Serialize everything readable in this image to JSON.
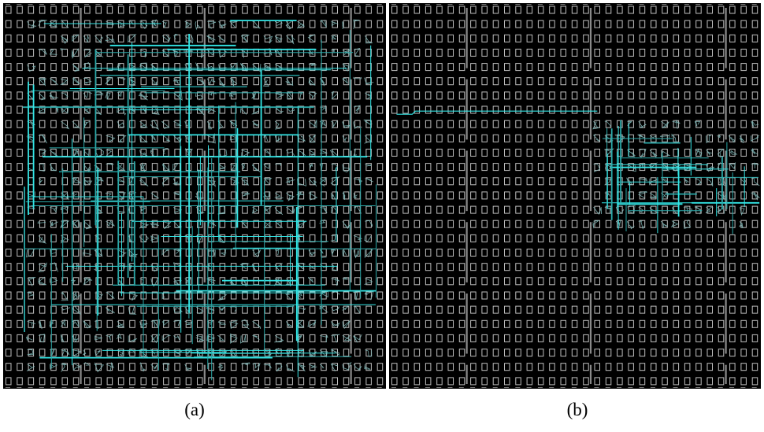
{
  "figure": {
    "panels": [
      {
        "id": "a",
        "caption": "(a)",
        "description_kind": "fpga-device-routing-view",
        "routed_region": {
          "col_start": 0.05,
          "col_end": 0.98,
          "row_start": 0.04,
          "row_end": 0.98,
          "density": "dense"
        }
      },
      {
        "id": "b",
        "caption": "(b)",
        "description_kind": "fpga-device-routing-view",
        "routed_region": {
          "col_start": 0.56,
          "col_end": 1.0,
          "row_start": 0.3,
          "row_end": 0.6,
          "density": "dense"
        },
        "long_wire": {
          "row": 0.28,
          "col_start": 0.02,
          "col_end": 0.56
        }
      }
    ],
    "colors": {
      "background": "#000000",
      "tile": "#bfbfbf",
      "column_bar": "#8a8a8a",
      "route_bright": "#33e6e6",
      "route_dim": "#2aa9a9",
      "local_cluster": "#7fb7b7"
    }
  }
}
